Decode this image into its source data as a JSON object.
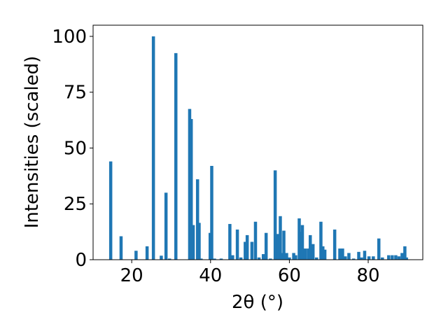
{
  "chart_data": {
    "type": "bar",
    "xlabel": "2θ (°)",
    "ylabel": "Intensities (scaled)",
    "color": "#1f77b4",
    "bar_width": 0.8,
    "x": [
      14.67,
      17.3,
      21.1,
      23.9,
      25.5,
      27.5,
      28.7,
      29.6,
      31.2,
      34.7,
      35.1,
      35.6,
      36.7,
      37.1,
      37.6,
      39.9,
      40.3,
      41.0,
      42.7,
      44.9,
      45.6,
      46.8,
      47.7,
      48.8,
      49.3,
      50.5,
      51.4,
      52.3,
      53.4,
      54.1,
      55.2,
      56.4,
      57.1,
      57.7,
      58.0,
      58.6,
      59.3,
      60.0,
      61.1,
      61.6,
      62.5,
      62.8,
      63.3,
      64.0,
      64.8,
      65.3,
      66.0,
      66.9,
      68.0,
      68.5,
      69.0,
      71.5,
      72.8,
      73.5,
      74.2,
      75.1,
      76.3,
      77.6,
      78.3,
      79.1,
      80.2,
      81.3,
      82.7,
      83.6,
      85.2,
      86.1,
      87.0,
      87.8,
      88.6,
      89.3,
      89.7
    ],
    "values": [
      44,
      10.5,
      4,
      6,
      100,
      1.8,
      30,
      0.5,
      92.5,
      67.5,
      63,
      15.5,
      36,
      16.5,
      0.5,
      12,
      42,
      0.5,
      0.5,
      16,
      2,
      13.5,
      1,
      8,
      11,
      8,
      17,
      1,
      2.5,
      12,
      0.5,
      40,
      11.5,
      19.5,
      3,
      13,
      3,
      1,
      3,
      2,
      18.5,
      12.5,
      15.5,
      5,
      5,
      11,
      7,
      1,
      17,
      6,
      4.5,
      13.5,
      5,
      5,
      1.5,
      3,
      0.5,
      3.5,
      1,
      4,
      1.5,
      1.5,
      9.5,
      1,
      2,
      2,
      2,
      1.5,
      3,
      6,
      1
    ],
    "xlim": [
      10.2,
      93.85
    ],
    "xticks": [
      20,
      40,
      60,
      80
    ],
    "ylim": [
      0,
      105
    ],
    "yticks": [
      0,
      25,
      50,
      75,
      100
    ]
  }
}
